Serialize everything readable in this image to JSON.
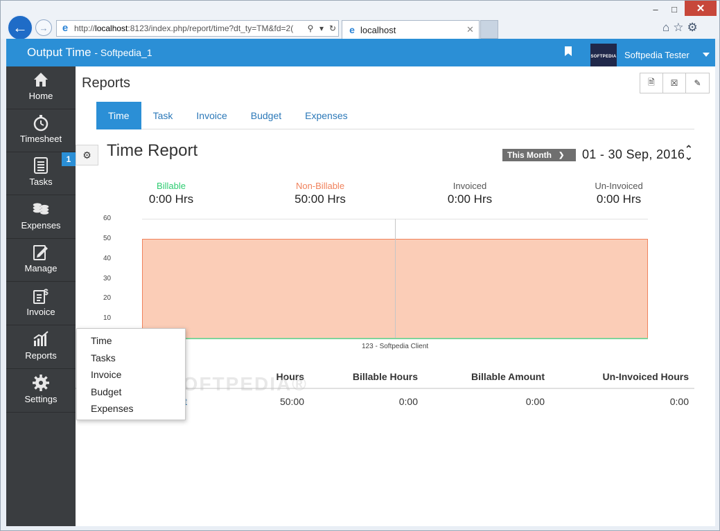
{
  "browser": {
    "url_prefix": "http://",
    "url_host": "localhost",
    "url_rest": ":8123/index.php/report/time?dt_ty=TM&fd=2(",
    "tab_title": "localhost"
  },
  "app": {
    "brand": "Output Time",
    "workspace": "- Softpedia_1",
    "user": "Softpedia Tester",
    "avatar_text": "SOFTPEDIA"
  },
  "sidebar": {
    "items": [
      {
        "label": "Home",
        "icon": "home-icon"
      },
      {
        "label": "Timesheet",
        "icon": "stopwatch-icon"
      },
      {
        "label": "Tasks",
        "icon": "tasks-icon"
      },
      {
        "label": "Expenses",
        "icon": "coins-icon"
      },
      {
        "label": "Manage",
        "icon": "edit-icon"
      },
      {
        "label": "Invoice",
        "icon": "invoice-icon"
      },
      {
        "label": "Reports",
        "icon": "chart-icon"
      },
      {
        "label": "Settings",
        "icon": "gear-icon"
      }
    ],
    "tasks_badge": "1"
  },
  "main": {
    "title": "Reports",
    "tabs": [
      "Time",
      "Task",
      "Invoice",
      "Budget",
      "Expenses"
    ],
    "report_title": "Time Report",
    "range_label": "This Month",
    "date_range": "01 - 30 Sep, 2016"
  },
  "summary": [
    {
      "label": "Billable",
      "value": "0:00 Hrs",
      "color": "#2ecc71"
    },
    {
      "label": "Non-Billable",
      "value": "50:00 Hrs",
      "color": "#f0825c"
    },
    {
      "label": "Invoiced",
      "value": "0:00 Hrs",
      "color": "#555555"
    },
    {
      "label": "Un-Invoiced",
      "value": "0:00 Hrs",
      "color": "#555555"
    }
  ],
  "chart_data": {
    "type": "area",
    "categories": [
      "123 - Softpedia Client"
    ],
    "yticks": [
      "60",
      "50",
      "40",
      "30",
      "20",
      "10"
    ],
    "ylim": [
      0,
      60
    ],
    "series": [
      {
        "name": "Non-Billable",
        "values": [
          50
        ],
        "color": "#f0825c"
      },
      {
        "name": "Billable",
        "values": [
          0
        ],
        "color": "#7fd39a"
      }
    ]
  },
  "table": {
    "headers": [
      "Hours",
      "Billable Hours",
      "Billable Amount",
      "Un-Invoiced Hours"
    ],
    "row": {
      "client_fragment": "t",
      "hours": "50:00",
      "billable_hours": "0:00",
      "billable_amount": "0:00",
      "uninvoiced_hours": "0:00"
    }
  },
  "reports_menu": [
    "Time",
    "Tasks",
    "Invoice",
    "Budget",
    "Expenses"
  ],
  "watermark": "SOFTPEDIA®"
}
